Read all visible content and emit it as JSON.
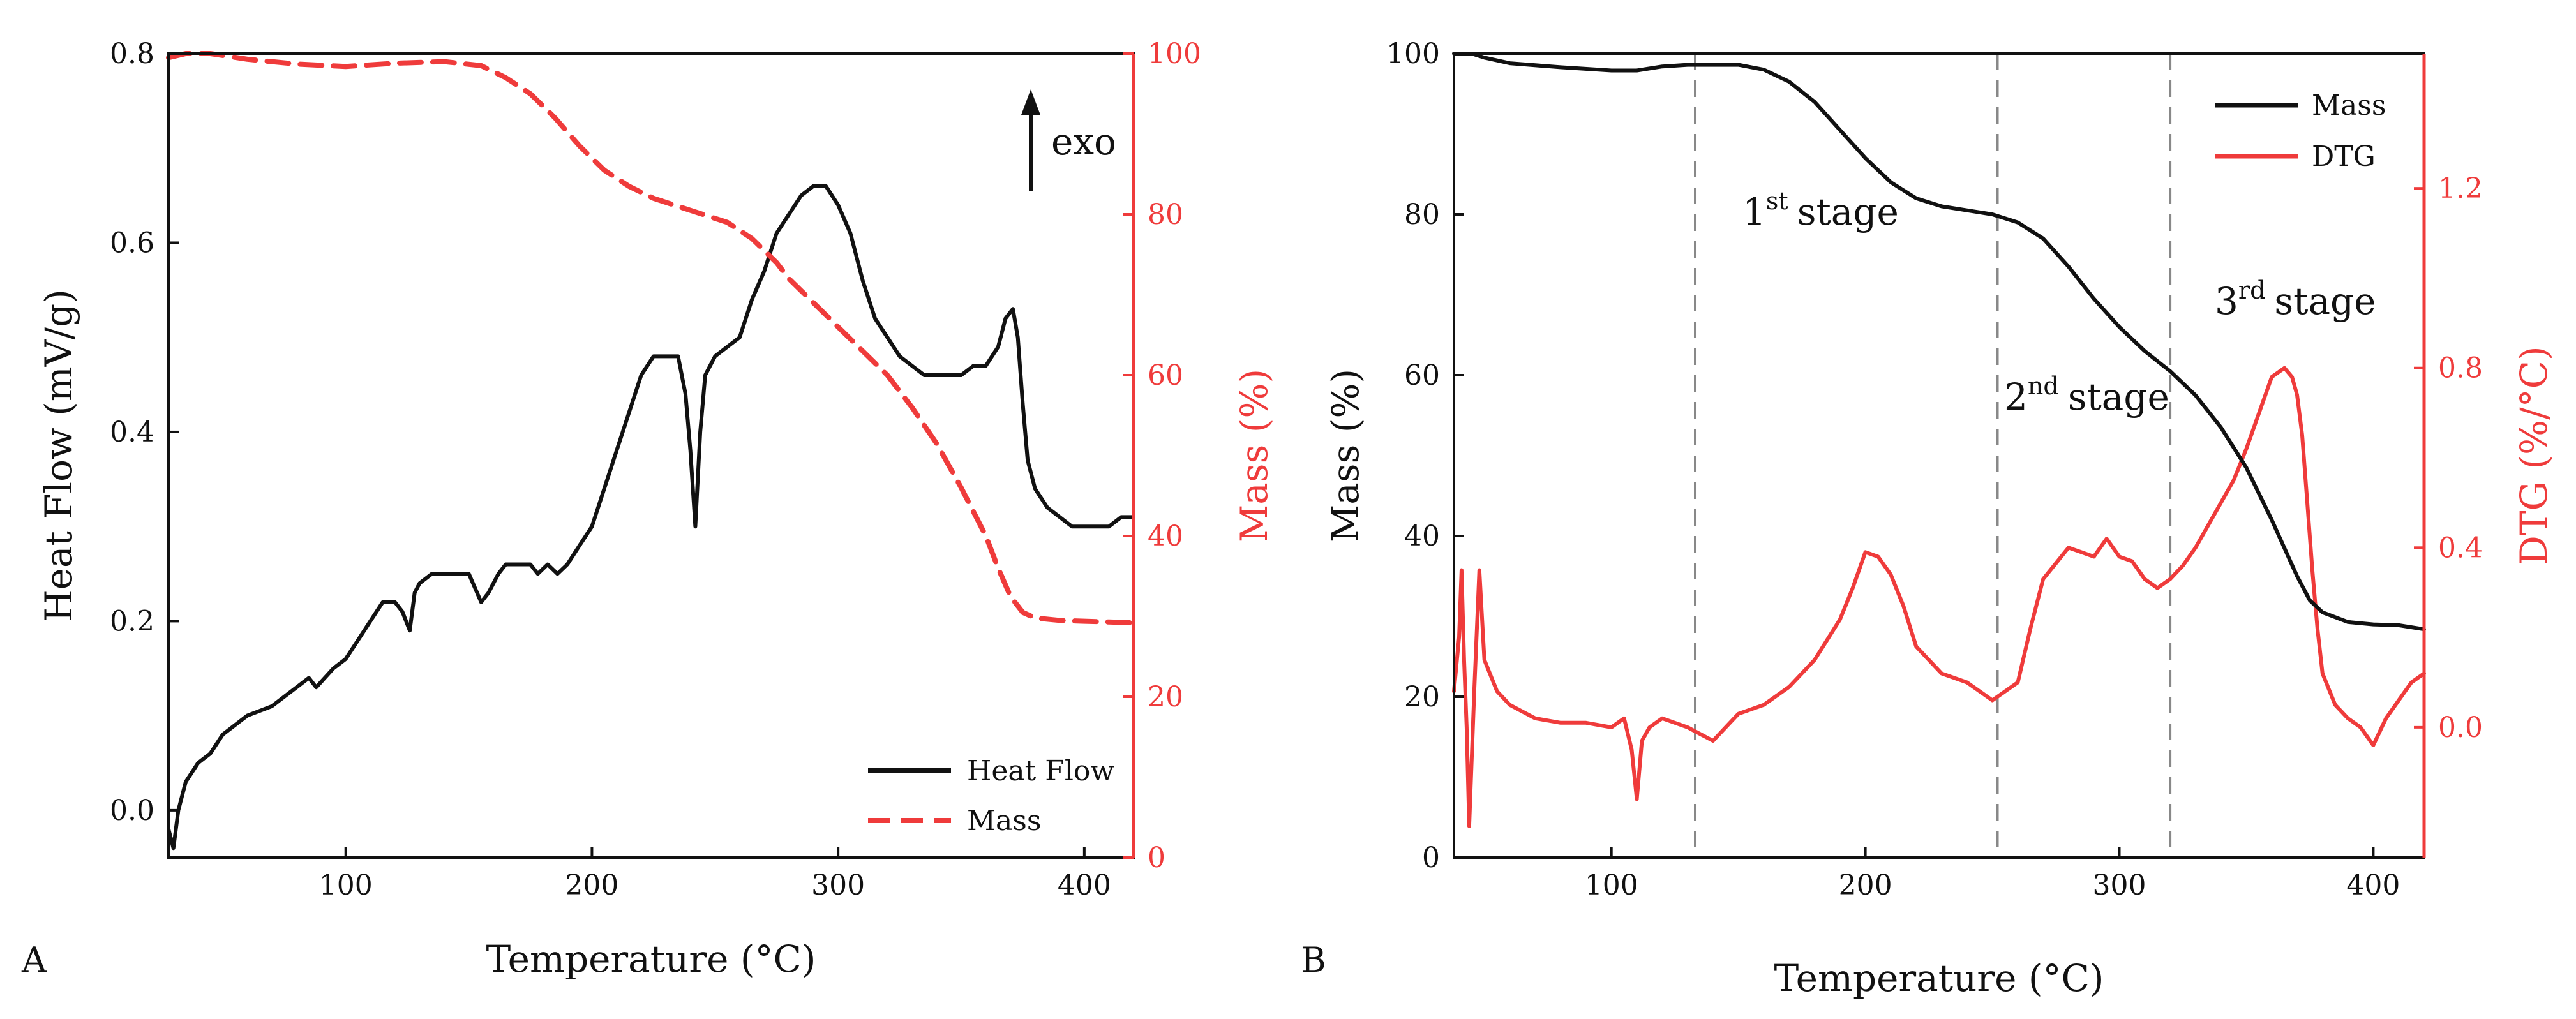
{
  "colors": {
    "black": "#111111",
    "red": "#ef3b3b",
    "stage_line": "#888888"
  },
  "chart_data": [
    {
      "panel": "A",
      "type": "line",
      "xlabel": "Temperature (°C)",
      "ylabel_left": "Heat Flow (mV/g)",
      "ylabel_right": "Mass (%)",
      "xlim": [
        28,
        420
      ],
      "ylim_left": [
        -0.05,
        0.8
      ],
      "ylim_right": [
        0,
        100
      ],
      "xticks": [
        100,
        200,
        300,
        400
      ],
      "yticks_left": [
        0.0,
        0.2,
        0.4,
        0.6,
        0.8
      ],
      "yticks_left_labels": [
        "0.0",
        "0.2",
        "0.4",
        "0.6",
        "0.8"
      ],
      "yticks_right": [
        0,
        20,
        40,
        60,
        80,
        100
      ],
      "annotation": "exo",
      "legend_position": "bottom-right",
      "series": [
        {
          "name": "Heat Flow",
          "axis": "left",
          "color": "#111111",
          "style": "solid",
          "x": [
            28,
            30,
            32,
            35,
            40,
            45,
            50,
            55,
            60,
            70,
            80,
            85,
            88,
            95,
            100,
            105,
            110,
            115,
            120,
            123,
            126,
            128,
            130,
            135,
            140,
            145,
            150,
            155,
            158,
            162,
            165,
            170,
            175,
            178,
            182,
            186,
            190,
            195,
            200,
            205,
            210,
            215,
            220,
            225,
            230,
            235,
            238,
            240,
            242,
            244,
            246,
            250,
            255,
            260,
            265,
            270,
            275,
            280,
            285,
            290,
            295,
            300,
            305,
            310,
            315,
            320,
            325,
            330,
            335,
            340,
            345,
            350,
            355,
            360,
            365,
            368,
            371,
            373,
            375,
            377,
            380,
            385,
            390,
            395,
            400,
            405,
            410,
            415,
            420
          ],
          "y": [
            -0.02,
            -0.04,
            0.0,
            0.03,
            0.05,
            0.06,
            0.08,
            0.09,
            0.1,
            0.11,
            0.13,
            0.14,
            0.13,
            0.15,
            0.16,
            0.18,
            0.2,
            0.22,
            0.22,
            0.21,
            0.19,
            0.23,
            0.24,
            0.25,
            0.25,
            0.25,
            0.25,
            0.22,
            0.23,
            0.25,
            0.26,
            0.26,
            0.26,
            0.25,
            0.26,
            0.25,
            0.26,
            0.28,
            0.3,
            0.34,
            0.38,
            0.42,
            0.46,
            0.48,
            0.48,
            0.48,
            0.44,
            0.38,
            0.3,
            0.4,
            0.46,
            0.48,
            0.49,
            0.5,
            0.54,
            0.57,
            0.61,
            0.63,
            0.65,
            0.66,
            0.66,
            0.64,
            0.61,
            0.56,
            0.52,
            0.5,
            0.48,
            0.47,
            0.46,
            0.46,
            0.46,
            0.46,
            0.47,
            0.47,
            0.49,
            0.52,
            0.53,
            0.5,
            0.43,
            0.37,
            0.34,
            0.32,
            0.31,
            0.3,
            0.3,
            0.3,
            0.3,
            0.31,
            0.31
          ]
        },
        {
          "name": "Mass",
          "axis": "right",
          "color": "#ef3b3b",
          "style": "dashed",
          "x": [
            28,
            35,
            45,
            60,
            80,
            100,
            120,
            140,
            155,
            165,
            175,
            185,
            195,
            205,
            215,
            225,
            235,
            245,
            255,
            265,
            270,
            275,
            280,
            290,
            300,
            310,
            320,
            330,
            340,
            350,
            360,
            365,
            370,
            375,
            380,
            390,
            400,
            410,
            420
          ],
          "y": [
            99.5,
            100,
            100,
            99.3,
            98.7,
            98.4,
            98.8,
            99.0,
            98.5,
            97.0,
            95.0,
            92.0,
            88.5,
            85.5,
            83.5,
            82.0,
            81.0,
            80.0,
            79.0,
            77.0,
            75.5,
            74.0,
            72.0,
            69.0,
            66.0,
            63.0,
            60.0,
            56.0,
            51.5,
            46.0,
            40.0,
            36.0,
            32.5,
            30.5,
            29.8,
            29.5,
            29.4,
            29.3,
            29.2
          ]
        }
      ]
    },
    {
      "panel": "B",
      "type": "line",
      "xlabel": "Temperature (°C)",
      "ylabel_left": "Mass (%)",
      "ylabel_right": "DTG (%/°C)",
      "xlim": [
        38,
        420
      ],
      "ylim_left": [
        0,
        100
      ],
      "ylim_right": [
        -0.29,
        1.5
      ],
      "xticks": [
        100,
        200,
        300,
        400
      ],
      "yticks_left": [
        0,
        20,
        40,
        60,
        80,
        100
      ],
      "yticks_right": [
        0.0,
        0.4,
        0.8,
        1.2
      ],
      "yticks_right_labels": [
        "0.0",
        "0.4",
        "0.8",
        "1.2"
      ],
      "stage_lines_x": [
        133,
        252,
        320
      ],
      "stages": [
        {
          "ordinal": "1",
          "sup": "st",
          "text": "stage"
        },
        {
          "ordinal": "2",
          "sup": "nd",
          "text": "stage"
        },
        {
          "ordinal": "3",
          "sup": "rd",
          "text": "stage"
        }
      ],
      "legend_position": "top-right",
      "series": [
        {
          "name": "Mass",
          "axis": "left",
          "color": "#111111",
          "style": "solid",
          "x": [
            38,
            45,
            50,
            60,
            80,
            100,
            110,
            120,
            130,
            140,
            150,
            160,
            170,
            180,
            190,
            200,
            210,
            220,
            230,
            240,
            250,
            260,
            270,
            280,
            290,
            300,
            310,
            320,
            330,
            340,
            350,
            360,
            370,
            375,
            380,
            390,
            400,
            410,
            420
          ],
          "y": [
            100,
            100,
            99.5,
            98.8,
            98.3,
            97.9,
            97.9,
            98.4,
            98.6,
            98.6,
            98.6,
            98.0,
            96.5,
            94.0,
            90.5,
            87.0,
            84.0,
            82.0,
            81.0,
            80.5,
            80.0,
            79.0,
            77.0,
            73.5,
            69.5,
            66.0,
            63.0,
            60.5,
            57.5,
            53.5,
            48.5,
            42.0,
            35.0,
            32.0,
            30.5,
            29.3,
            29.0,
            28.9,
            28.4
          ]
        },
        {
          "name": "DTG",
          "axis": "right",
          "color": "#ef3b3b",
          "style": "solid",
          "x": [
            38,
            40,
            41,
            42,
            43,
            44,
            46,
            48,
            50,
            55,
            60,
            70,
            80,
            90,
            100,
            105,
            108,
            110,
            112,
            115,
            120,
            130,
            140,
            150,
            160,
            170,
            180,
            190,
            195,
            200,
            205,
            210,
            215,
            220,
            230,
            240,
            250,
            255,
            260,
            265,
            270,
            280,
            285,
            290,
            295,
            300,
            305,
            310,
            315,
            320,
            325,
            330,
            335,
            340,
            345,
            350,
            355,
            360,
            365,
            368,
            370,
            372,
            374,
            376,
            378,
            380,
            385,
            390,
            395,
            400,
            405,
            410,
            415,
            420
          ],
          "y": [
            0.08,
            0.2,
            0.35,
            0.15,
            0.0,
            -0.22,
            0.08,
            0.35,
            0.15,
            0.08,
            0.05,
            0.02,
            0.01,
            0.01,
            0.0,
            0.02,
            -0.05,
            -0.16,
            -0.03,
            0.0,
            0.02,
            0.0,
            -0.03,
            0.03,
            0.05,
            0.09,
            0.15,
            0.24,
            0.31,
            0.39,
            0.38,
            0.34,
            0.27,
            0.18,
            0.12,
            0.1,
            0.06,
            0.08,
            0.1,
            0.22,
            0.33,
            0.4,
            0.39,
            0.38,
            0.42,
            0.38,
            0.37,
            0.33,
            0.31,
            0.33,
            0.36,
            0.4,
            0.45,
            0.5,
            0.55,
            0.62,
            0.7,
            0.78,
            0.8,
            0.78,
            0.74,
            0.65,
            0.5,
            0.35,
            0.22,
            0.12,
            0.05,
            0.02,
            0.0,
            -0.04,
            0.02,
            0.06,
            0.1,
            0.12
          ]
        }
      ]
    }
  ]
}
